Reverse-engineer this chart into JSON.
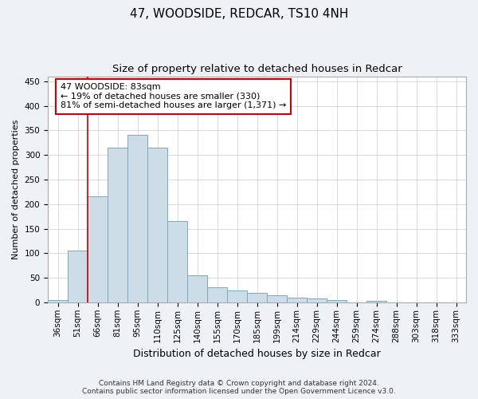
{
  "title": "47, WOODSIDE, REDCAR, TS10 4NH",
  "subtitle": "Size of property relative to detached houses in Redcar",
  "xlabel": "Distribution of detached houses by size in Redcar",
  "ylabel": "Number of detached properties",
  "categories": [
    "36sqm",
    "51sqm",
    "66sqm",
    "81sqm",
    "95sqm",
    "110sqm",
    "125sqm",
    "140sqm",
    "155sqm",
    "170sqm",
    "185sqm",
    "199sqm",
    "214sqm",
    "229sqm",
    "244sqm",
    "259sqm",
    "274sqm",
    "288sqm",
    "303sqm",
    "318sqm",
    "333sqm"
  ],
  "values": [
    5,
    105,
    215,
    315,
    340,
    315,
    165,
    55,
    30,
    25,
    20,
    15,
    10,
    8,
    5,
    0,
    3,
    0,
    0,
    0,
    0
  ],
  "bar_color": "#ccdde8",
  "bar_edge_color": "#7aaabb",
  "vline_x_idx": 1.5,
  "vline_color": "#cc0000",
  "annotation_line1": "47 WOODSIDE: 83sqm",
  "annotation_line2": "← 19% of detached houses are smaller (330)",
  "annotation_line3": "81% of semi-detached houses are larger (1,371) →",
  "annotation_box_color": "#ffffff",
  "annotation_box_edge": "#cc0000",
  "ylim": [
    0,
    460
  ],
  "yticks": [
    0,
    50,
    100,
    150,
    200,
    250,
    300,
    350,
    400,
    450
  ],
  "footer_line1": "Contains HM Land Registry data © Crown copyright and database right 2024.",
  "footer_line2": "Contains public sector information licensed under the Open Government Licence v3.0.",
  "title_fontsize": 11,
  "subtitle_fontsize": 9.5,
  "ylabel_fontsize": 8,
  "xlabel_fontsize": 9,
  "tick_fontsize": 7.5,
  "annotation_fontsize": 8,
  "footer_fontsize": 6.5,
  "bg_color": "#eef2f7",
  "plot_bg_color": "#ffffff",
  "grid_color": "#cccccc"
}
